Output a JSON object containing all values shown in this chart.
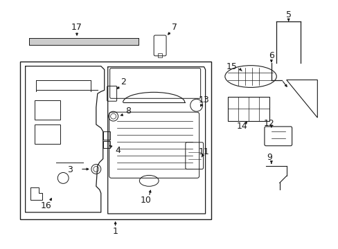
{
  "background_color": "#ffffff",
  "fig_width": 4.89,
  "fig_height": 3.6,
  "dpi": 100,
  "line_color": "#1a1a1a",
  "text_color": "#1a1a1a",
  "gray_fill": "#cccccc",
  "light_gray": "#e0e0e0"
}
